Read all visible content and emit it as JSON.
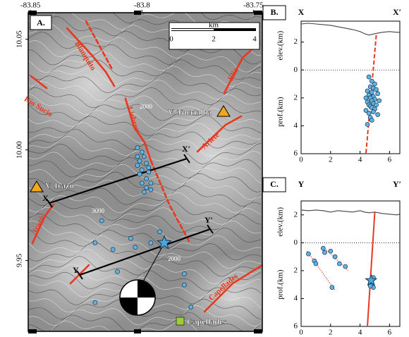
{
  "chart_data": [
    {
      "type": "map",
      "panel_label": "A.",
      "xlim": [
        -83.851,
        -83.746
      ],
      "ylim": [
        9.918,
        10.062
      ],
      "xticks": [
        -83.85,
        -83.8,
        -83.75
      ],
      "yticks": [
        10.05,
        {
          "value": 10,
          "label": "10.00"
        },
        9.95
      ],
      "scale": {
        "title": "km",
        "ticks": [
          "0",
          "2",
          "4"
        ]
      },
      "places": [
        "V. Turrialba",
        "V. Irazú",
        "Capellades"
      ],
      "faults": [
        "Blanquito",
        "Elia",
        "Río Sucio",
        "Liebres",
        "Ariete",
        "Irazú",
        "Capellades"
      ],
      "contours": [
        "2000",
        "3000",
        "2000"
      ],
      "sections": [
        "X",
        "X′",
        "Y",
        "Y′"
      ],
      "epicenters": {
        "lon": [
          -83.802,
          -83.8,
          -83.799,
          -83.801,
          -83.798,
          -83.802,
          -83.8,
          -83.797,
          -83.801,
          -83.798,
          -83.796,
          -83.8,
          -83.798,
          -83.796,
          -83.799,
          -83.802,
          -83.797,
          -83.818,
          -83.821,
          -83.813,
          -83.803,
          -83.805,
          -83.811,
          -83.821,
          -83.796,
          -83.792,
          -83.781,
          -83.781,
          -83.778
        ],
        "lat": [
          10.001,
          9.999,
          9.997,
          9.995,
          9.994,
          9.993,
          9.991,
          9.99,
          9.989,
          9.987,
          9.985,
          9.985,
          9.983,
          9.982,
          9.981,
          9.997,
          9.992,
          9.968,
          9.958,
          9.955,
          9.956,
          9.96,
          9.945,
          9.931,
          9.958,
          9.963,
          9.944,
          9.939,
          9.929
        ]
      },
      "mainshock": {
        "lon": -83.79,
        "lat": 9.958
      }
    },
    {
      "type": "section",
      "panel_label": "B.",
      "ends": [
        "X",
        "X′"
      ],
      "elev_label": "elev.(km)",
      "depth_label": "prof.(km)",
      "xlim": [
        0,
        6.7
      ],
      "ylim": [
        -3.5,
        6
      ],
      "xticks": [
        0,
        2,
        4,
        6
      ],
      "yticks": [
        {
          "value": -2,
          "label": "2"
        },
        0,
        2,
        4,
        6
      ],
      "profile": {
        "x": [
          0,
          0.5,
          1,
          1.5,
          2,
          2.5,
          3,
          3.5,
          4,
          4.3,
          4.6,
          5,
          5.5,
          6,
          6.5,
          6.7
        ],
        "y": [
          -3.3,
          -3.35,
          -3.3,
          -3.25,
          -3.2,
          -3.1,
          -3.0,
          -2.9,
          -2.75,
          -2.6,
          -2.5,
          -2.6,
          -2.7,
          -2.75,
          -2.7,
          -2.7
        ]
      },
      "earthquakes": {
        "x": [
          4.6,
          4.8,
          5.0,
          4.7,
          4.9,
          5.1,
          4.5,
          4.8,
          5.2,
          4.6,
          4.9,
          4.4,
          4.7,
          5.0,
          4.8,
          5.3,
          4.5,
          4.9,
          4.6,
          5.1,
          4.7,
          4.8,
          5.0,
          4.4,
          4.9,
          4.6,
          5.2,
          4.7,
          4.8,
          4.5
        ],
        "depth": [
          0.5,
          0.8,
          1.0,
          1.2,
          1.3,
          1.4,
          1.5,
          1.6,
          1.7,
          1.8,
          1.9,
          2.0,
          2.0,
          2.1,
          2.2,
          2.2,
          2.3,
          2.4,
          2.5,
          2.5,
          2.6,
          2.7,
          2.8,
          2.9,
          3.0,
          3.1,
          3.2,
          3.4,
          3.6,
          3.9
        ]
      }
    },
    {
      "type": "section",
      "panel_label": "C.",
      "ends": [
        "Y",
        "Y′"
      ],
      "elev_label": "elev.(km)",
      "depth_label": "prof.(km)",
      "xlim": [
        0,
        6.7
      ],
      "ylim": [
        -3,
        6
      ],
      "xticks": [
        0,
        2,
        4,
        6
      ],
      "yticks": [
        {
          "value": -2,
          "label": "2"
        },
        0,
        2,
        4,
        6
      ],
      "profile": {
        "x": [
          0,
          0.5,
          1,
          1.5,
          2,
          2.5,
          3,
          3.5,
          4,
          4.3,
          4.6,
          5,
          5.5,
          6,
          6.5,
          6.7
        ],
        "y": [
          -2.35,
          -2.3,
          -2.35,
          -2.3,
          -2.2,
          -2.3,
          -2.25,
          -2.2,
          -2.3,
          -2.2,
          -2.15,
          -2.2,
          -2.1,
          -2.05,
          -2.0,
          -2.05
        ]
      },
      "earthquakes": {
        "x": [
          0.5,
          0.9,
          1.0,
          1.5,
          1.6,
          2.0,
          2.3,
          2.6,
          3.0,
          2.1,
          4.8,
          4.9,
          4.7,
          4.9
        ],
        "depth": [
          0.8,
          1.3,
          1.5,
          0.4,
          0.7,
          0.6,
          1.0,
          1.5,
          1.7,
          3.2,
          2.9,
          3.2,
          3.1,
          2.5
        ]
      },
      "mainshock": {
        "x": 4.75,
        "depth": 2.7
      }
    }
  ]
}
